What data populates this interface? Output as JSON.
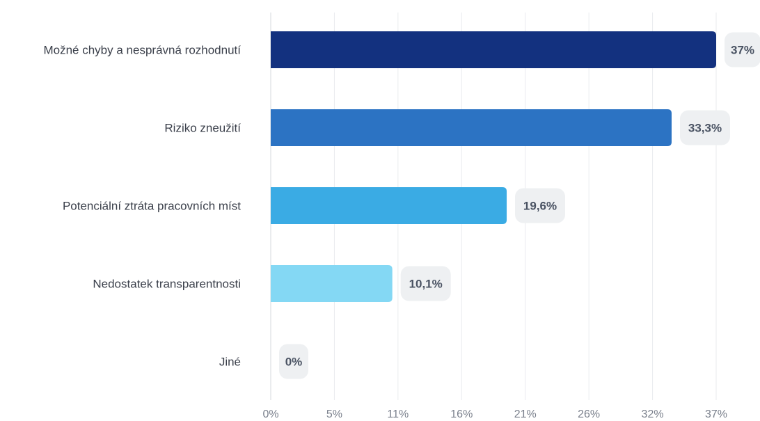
{
  "chart_data": {
    "type": "bar",
    "orientation": "horizontal",
    "categories": [
      "Možné chyby a nesprávná rozhodnutí",
      "Riziko zneužití",
      "Potenciální ztráta pracovních míst",
      "Nedostatek transparentnosti",
      "Jiné"
    ],
    "values": [
      37,
      33.3,
      19.6,
      10.1,
      0
    ],
    "value_labels": [
      "37%",
      "33,3%",
      "19,6%",
      "10,1%",
      "0%"
    ],
    "xticks": [
      "0%",
      "5%",
      "11%",
      "16%",
      "21%",
      "26%",
      "32%",
      "37%"
    ],
    "xlim": [
      0,
      37
    ],
    "grid": true,
    "bar_colors": [
      "#13317f",
      "#2c73c3",
      "#3aabe4",
      "#84d8f4",
      "#84d8f4"
    ],
    "title": "",
    "xlabel": "",
    "ylabel": ""
  }
}
